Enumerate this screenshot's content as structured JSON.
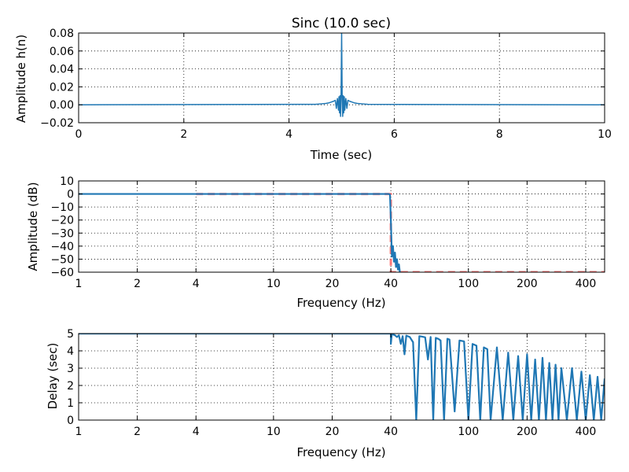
{
  "chart_data": [
    {
      "type": "line",
      "title": "Sinc (10.0 sec)",
      "xlabel": "Time (sec)",
      "ylabel": "Amplitude h(n)",
      "xscale": "linear",
      "xlim": [
        0,
        10
      ],
      "ylim": [
        -0.02,
        0.08
      ],
      "xticks": [
        0,
        2,
        4,
        6,
        8,
        10
      ],
      "xtick_labels": [
        "0",
        "2",
        "4",
        "6",
        "8",
        "10"
      ],
      "yticks": [
        -0.02,
        0.0,
        0.02,
        0.04,
        0.06,
        0.08
      ],
      "ytick_labels": [
        "−0.02",
        "0.00",
        "0.02",
        "0.04",
        "0.06",
        "0.08"
      ],
      "grid": true,
      "series": [
        {
          "color": "#1f77b4",
          "x": [
            0,
            4.5,
            4.6,
            4.7,
            4.75,
            4.8,
            4.85,
            4.88,
            4.9,
            4.92,
            4.94,
            4.95,
            4.96,
            4.97,
            4.98,
            4.99,
            5.0,
            5.01,
            5.02,
            5.03,
            5.04,
            5.05,
            5.06,
            5.08,
            5.1,
            5.12,
            5.15,
            5.2,
            5.25,
            5.3,
            5.4,
            5.5,
            10
          ],
          "y": [
            0.0,
            0.0005,
            0.001,
            0.0015,
            0.002,
            0.003,
            0.004,
            0.005,
            -0.004,
            0.007,
            -0.006,
            0.009,
            -0.009,
            0.01,
            -0.013,
            0.012,
            0.08,
            0.012,
            -0.013,
            0.01,
            -0.009,
            0.009,
            -0.006,
            0.007,
            -0.004,
            0.005,
            0.004,
            0.003,
            0.002,
            0.0015,
            0.001,
            0.0005,
            0.0
          ]
        }
      ]
    },
    {
      "type": "line",
      "title": "",
      "xlabel": "Frequency (Hz)",
      "ylabel": "Amplitude (dB)",
      "xscale": "log",
      "xlim": [
        1,
        500
      ],
      "ylim": [
        -60,
        10
      ],
      "xticks": [
        1,
        2,
        4,
        10,
        20,
        40,
        100,
        200,
        400
      ],
      "xtick_labels": [
        "1",
        "2",
        "4",
        "10",
        "20",
        "40",
        "100",
        "200",
        "400"
      ],
      "yticks": [
        -60,
        -50,
        -40,
        -30,
        -20,
        -10,
        0,
        10
      ],
      "ytick_labels": [
        "−60",
        "−50",
        "−40",
        "−30",
        "−20",
        "−10",
        "0",
        "10"
      ],
      "grid": true,
      "series": [
        {
          "style": "dashed",
          "color": "#ff6666",
          "x": [
            4,
            40,
            40,
            500
          ],
          "y": [
            0,
            0,
            -60,
            -60
          ]
        },
        {
          "style": "solid",
          "color": "#1f77b4",
          "x": [
            1,
            39.0,
            39.6,
            40.0,
            40.5,
            41.0,
            41.5,
            42.0,
            42.5,
            43.0,
            43.5,
            44.0,
            44.5,
            45.0
          ],
          "y": [
            0,
            0,
            -0.5,
            -20,
            -48,
            -40,
            -52,
            -45,
            -56,
            -50,
            -58,
            -54,
            -60,
            -60
          ]
        }
      ]
    },
    {
      "type": "line",
      "title": "",
      "xlabel": "Frequency (Hz)",
      "ylabel": "Delay (sec)",
      "xscale": "log",
      "xlim": [
        1,
        500
      ],
      "ylim": [
        0,
        5
      ],
      "xticks": [
        1,
        2,
        4,
        10,
        20,
        40,
        100,
        200,
        400
      ],
      "xtick_labels": [
        "1",
        "2",
        "4",
        "10",
        "20",
        "40",
        "100",
        "200",
        "400"
      ],
      "yticks": [
        0,
        1,
        2,
        3,
        4,
        5
      ],
      "ytick_labels": [
        "0",
        "1",
        "2",
        "3",
        "4",
        "5"
      ],
      "grid": true,
      "series": [
        {
          "color": "#1f77b4",
          "x": [
            1,
            40,
            40,
            40.5,
            41,
            42,
            43,
            44,
            45,
            46,
            47,
            48,
            50,
            52,
            54,
            56,
            58,
            60,
            62,
            64,
            66,
            68,
            70,
            72,
            75,
            78,
            80,
            85,
            90,
            95,
            100,
            105,
            110,
            115,
            120,
            125,
            130,
            140,
            150,
            160,
            170,
            180,
            190,
            200,
            210,
            220,
            230,
            240,
            250,
            260,
            270,
            280,
            290,
            300,
            320,
            340,
            360,
            380,
            400,
            420,
            440,
            460,
            480,
            500
          ],
          "y": [
            5,
            5,
            4.4,
            5.0,
            4.95,
            4.9,
            4.8,
            4.9,
            4.4,
            4.85,
            3.8,
            4.88,
            4.8,
            4.5,
            0.0,
            4.85,
            4.82,
            4.78,
            3.5,
            4.8,
            0.0,
            4.75,
            4.7,
            4.6,
            0.0,
            4.7,
            4.65,
            0.5,
            4.6,
            4.55,
            0.0,
            4.4,
            4.3,
            0.0,
            4.2,
            4.1,
            0.0,
            4.2,
            0.0,
            3.9,
            0.0,
            3.7,
            0.0,
            3.8,
            0.0,
            3.5,
            0.0,
            3.6,
            0.0,
            3.3,
            0.0,
            3.2,
            0.0,
            3.0,
            0.0,
            3.0,
            0.0,
            2.8,
            0.0,
            2.6,
            0.0,
            2.5,
            0.0,
            2.4
          ]
        }
      ]
    }
  ]
}
